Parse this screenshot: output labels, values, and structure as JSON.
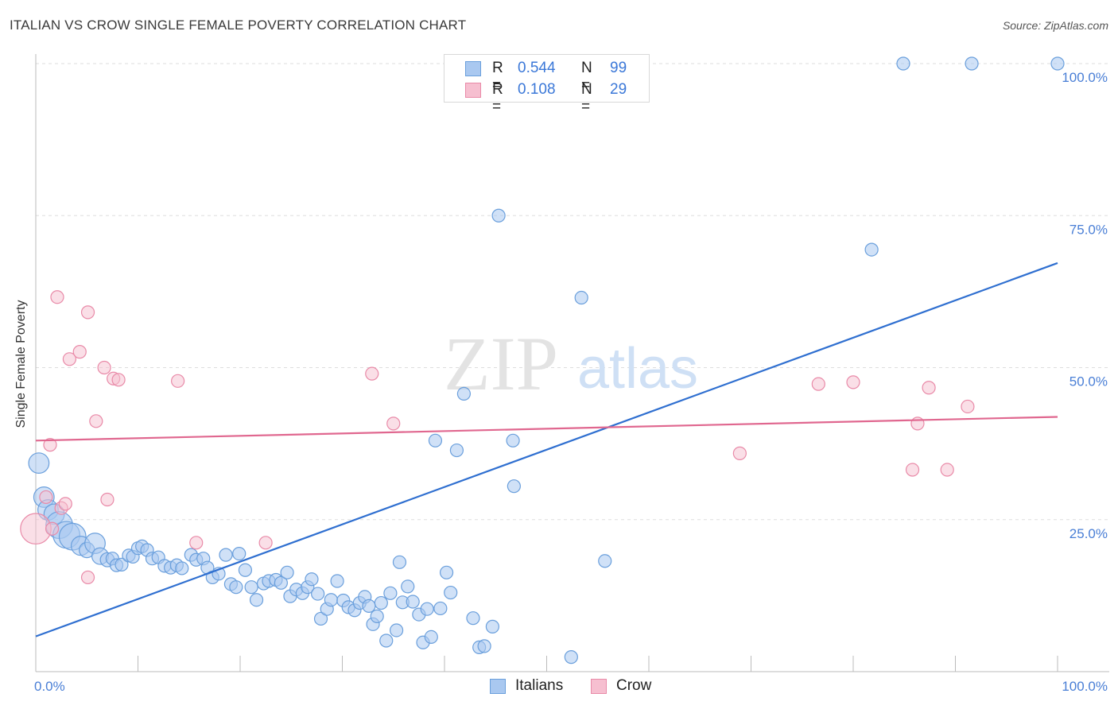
{
  "header": {
    "title": "ITALIAN VS CROW SINGLE FEMALE POVERTY CORRELATION CHART",
    "source": "Source: ZipAtlas.com"
  },
  "watermark": {
    "zip": "ZIP",
    "atlas": "atlas"
  },
  "legend": {
    "italians": {
      "r_label": "R =",
      "r_value": "0.544",
      "n_label": "N =",
      "n_value": "99"
    },
    "crow": {
      "r_label": "R =",
      "r_value": "0.108",
      "n_label": "N =",
      "n_value": "29"
    }
  },
  "bottom_legend": {
    "italians": "Italians",
    "crow": "Crow"
  },
  "colors": {
    "italians_fill": "#a9c8f0",
    "italians_stroke": "#6a9fdc",
    "italians_line": "#2f6fd0",
    "crow_fill": "#f6bfd0",
    "crow_stroke": "#e98aa8",
    "crow_line": "#e0678f",
    "tick_text": "#4a7fd6",
    "grid": "#dddddd"
  },
  "chart_data": {
    "type": "scatter",
    "title": "ITALIAN VS CROW SINGLE FEMALE POVERTY CORRELATION CHART",
    "xlabel": "",
    "ylabel": "Single Female Poverty",
    "xlim": [
      0,
      100
    ],
    "ylim": [
      0,
      100
    ],
    "x_tick_labels": [
      "0.0%",
      "100.0%"
    ],
    "y_tick_labels": [
      "25.0%",
      "50.0%",
      "75.0%",
      "100.0%"
    ],
    "y_ticks": [
      25,
      50,
      75,
      100
    ],
    "grid": true,
    "legend_position": "top-center",
    "series": [
      {
        "name": "Italians",
        "trendline": {
          "x": [
            0,
            100
          ],
          "y": [
            5.8,
            67.2
          ]
        },
        "points": [
          [
            0.3,
            34.3,
            1.6
          ],
          [
            0.8,
            28.7,
            1.6
          ],
          [
            1.2,
            26.6,
            1.6
          ],
          [
            1.8,
            25.9,
            1.6
          ],
          [
            2.3,
            24.1,
            2.1
          ],
          [
            3.0,
            22.5,
            2.1
          ],
          [
            3.6,
            22.2,
            2.1
          ],
          [
            4.4,
            20.7,
            1.5
          ],
          [
            5.0,
            20.0,
            1.2
          ],
          [
            5.8,
            21.1,
            1.6
          ],
          [
            6.3,
            19.0,
            1.3
          ],
          [
            7.0,
            18.4,
            1.1
          ],
          [
            7.5,
            18.6,
            1.0
          ],
          [
            7.9,
            17.5,
            1.0
          ],
          [
            8.4,
            17.6,
            1.0
          ],
          [
            9.1,
            19.1,
            1.0
          ],
          [
            9.5,
            18.9,
            1.0
          ],
          [
            10.0,
            20.3,
            1.0
          ],
          [
            10.4,
            20.6,
            1.0
          ],
          [
            10.9,
            20.0,
            1.0
          ],
          [
            11.4,
            18.6,
            1.0
          ],
          [
            12.0,
            18.8,
            1.0
          ],
          [
            12.6,
            17.4,
            1.0
          ],
          [
            13.2,
            17.1,
            1.0
          ],
          [
            13.8,
            17.5,
            1.0
          ],
          [
            14.3,
            17.0,
            1.0
          ],
          [
            15.2,
            19.2,
            1.0
          ],
          [
            15.7,
            18.4,
            1.0
          ],
          [
            16.4,
            18.6,
            1.0
          ],
          [
            16.8,
            17.1,
            1.0
          ],
          [
            17.3,
            15.5,
            1.0
          ],
          [
            17.9,
            16.1,
            1.0
          ],
          [
            18.6,
            19.2,
            1.0
          ],
          [
            19.1,
            14.4,
            1.0
          ],
          [
            19.6,
            13.9,
            1.0
          ],
          [
            19.9,
            19.4,
            1.0
          ],
          [
            20.5,
            16.7,
            1.0
          ],
          [
            21.1,
            13.9,
            1.0
          ],
          [
            21.6,
            11.8,
            1.0
          ],
          [
            22.3,
            14.5,
            1.0
          ],
          [
            22.8,
            14.9,
            1.0
          ],
          [
            23.5,
            15.1,
            1.0
          ],
          [
            24.0,
            14.6,
            1.0
          ],
          [
            24.6,
            16.3,
            1.0
          ],
          [
            24.9,
            12.4,
            1.0
          ],
          [
            25.5,
            13.5,
            1.0
          ],
          [
            26.1,
            12.9,
            1.0
          ],
          [
            26.6,
            13.9,
            1.0
          ],
          [
            27.0,
            15.2,
            1.0
          ],
          [
            27.6,
            12.8,
            1.0
          ],
          [
            27.9,
            8.7,
            1.0
          ],
          [
            28.5,
            10.3,
            1.0
          ],
          [
            28.9,
            11.8,
            1.0
          ],
          [
            29.5,
            14.9,
            1.0
          ],
          [
            30.1,
            11.7,
            1.0
          ],
          [
            30.6,
            10.6,
            1.0
          ],
          [
            31.2,
            10.1,
            1.0
          ],
          [
            31.7,
            11.3,
            1.0
          ],
          [
            32.2,
            12.3,
            1.0
          ],
          [
            32.6,
            10.8,
            1.0
          ],
          [
            33.0,
            7.8,
            1.0
          ],
          [
            33.4,
            9.1,
            1.0
          ],
          [
            33.8,
            11.3,
            1.0
          ],
          [
            34.3,
            5.1,
            1.0
          ],
          [
            34.7,
            12.9,
            1.0
          ],
          [
            35.3,
            6.8,
            1.0
          ],
          [
            35.6,
            18.0,
            1.0
          ],
          [
            35.9,
            11.4,
            1.0
          ],
          [
            36.4,
            14.0,
            1.0
          ],
          [
            36.9,
            11.5,
            1.0
          ],
          [
            37.5,
            9.4,
            1.0
          ],
          [
            37.9,
            4.8,
            1.0
          ],
          [
            38.3,
            10.3,
            1.0
          ],
          [
            38.7,
            5.7,
            1.0
          ],
          [
            39.1,
            38.0,
            1.0
          ],
          [
            39.6,
            10.4,
            1.0
          ],
          [
            40.2,
            16.3,
            1.0
          ],
          [
            40.6,
            13.0,
            1.0
          ],
          [
            41.2,
            36.4,
            1.0
          ],
          [
            41.9,
            45.7,
            1.0
          ],
          [
            42.8,
            8.8,
            1.0
          ],
          [
            43.4,
            4.0,
            1.0
          ],
          [
            43.9,
            4.2,
            1.0
          ],
          [
            44.7,
            7.4,
            1.0
          ],
          [
            45.3,
            75.0,
            1.0
          ],
          [
            46.7,
            38.0,
            1.0
          ],
          [
            46.8,
            30.5,
            1.0
          ],
          [
            49.9,
            100.0,
            1.0
          ],
          [
            52.4,
            2.4,
            1.0
          ],
          [
            53.4,
            61.5,
            1.0
          ],
          [
            55.7,
            18.2,
            1.0
          ],
          [
            81.8,
            69.4,
            1.0
          ],
          [
            84.9,
            100.0,
            1.0
          ],
          [
            91.6,
            100.0,
            1.0
          ],
          [
            100.0,
            100.0,
            1.0
          ]
        ]
      },
      {
        "name": "Crow",
        "trendline": {
          "x": [
            0,
            100
          ],
          "y": [
            38.0,
            41.9
          ]
        },
        "points": [
          [
            0.0,
            23.5,
            2.4
          ],
          [
            1.4,
            37.3,
            1.0
          ],
          [
            1.0,
            28.7,
            1.0
          ],
          [
            2.1,
            61.6,
            1.0
          ],
          [
            2.5,
            26.9,
            1.0
          ],
          [
            2.9,
            27.6,
            1.0
          ],
          [
            3.3,
            51.4,
            1.0
          ],
          [
            4.3,
            52.6,
            1.0
          ],
          [
            5.1,
            15.5,
            1.0
          ],
          [
            5.1,
            59.1,
            1.0
          ],
          [
            5.9,
            41.2,
            1.0
          ],
          [
            6.7,
            50.0,
            1.0
          ],
          [
            7.0,
            28.3,
            1.0
          ],
          [
            7.6,
            48.2,
            1.0
          ],
          [
            8.1,
            48.0,
            1.0
          ],
          [
            13.9,
            47.8,
            1.0
          ],
          [
            15.7,
            21.2,
            1.0
          ],
          [
            22.5,
            21.2,
            1.0
          ],
          [
            32.9,
            49.0,
            1.0
          ],
          [
            35.0,
            40.8,
            1.0
          ],
          [
            68.9,
            35.9,
            1.0
          ],
          [
            76.6,
            47.3,
            1.0
          ],
          [
            80.0,
            47.6,
            1.0
          ],
          [
            85.8,
            33.2,
            1.0
          ],
          [
            86.3,
            40.8,
            1.0
          ],
          [
            87.4,
            46.7,
            1.0
          ],
          [
            89.2,
            33.2,
            1.0
          ],
          [
            91.2,
            43.6,
            1.0
          ],
          [
            1.6,
            23.5,
            1.0
          ]
        ]
      }
    ]
  }
}
